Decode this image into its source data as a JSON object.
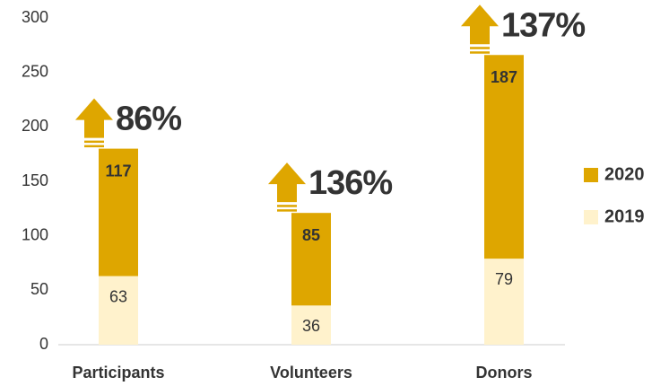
{
  "chart_data": {
    "type": "stacked_bar",
    "categories": [
      "Participants",
      "Volunteers",
      "Donors"
    ],
    "series": [
      {
        "name": "2020",
        "color": "#dea600",
        "values": [
          117,
          85,
          187
        ]
      },
      {
        "name": "2019",
        "color": "#fff2cc",
        "values": [
          63,
          36,
          79
        ]
      }
    ],
    "annotations": [
      "86%",
      "136%",
      "137%"
    ],
    "ylim": [
      0,
      300
    ],
    "yticks": [
      0,
      50,
      100,
      150,
      200,
      250,
      300
    ],
    "grid": false,
    "legend": "right"
  }
}
